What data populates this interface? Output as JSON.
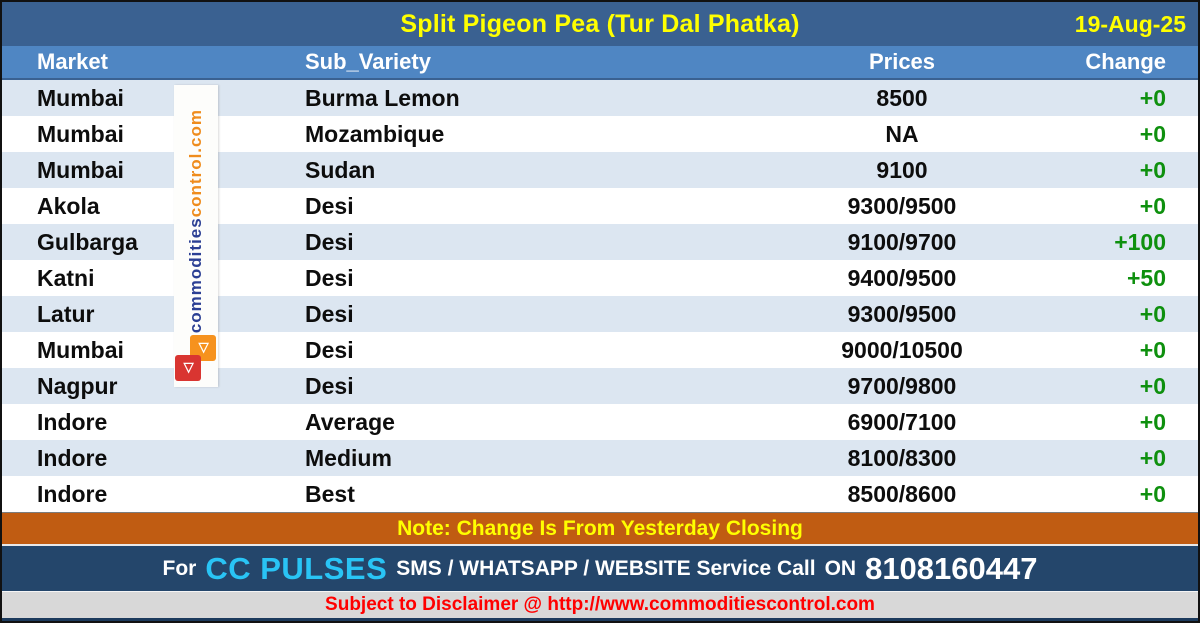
{
  "title": "Split Pigeon Pea (Tur Dal Phatka)",
  "date": "19-Aug-25",
  "columns": {
    "market": "Market",
    "variety": "Sub_Variety",
    "prices": "Prices",
    "change": "Change"
  },
  "rows": [
    {
      "market": "Mumbai",
      "variety": "Burma Lemon",
      "price": "8500",
      "change": "+0"
    },
    {
      "market": "Mumbai",
      "variety": "Mozambique",
      "price": "NA",
      "change": "+0"
    },
    {
      "market": "Mumbai",
      "variety": "Sudan",
      "price": "9100",
      "change": "+0"
    },
    {
      "market": "Akola",
      "variety": "Desi",
      "price": "9300/9500",
      "change": "+0"
    },
    {
      "market": "Gulbarga",
      "variety": "Desi",
      "price": "9100/9700",
      "change": "+100"
    },
    {
      "market": "Katni",
      "variety": "Desi",
      "price": "9400/9500",
      "change": "+50"
    },
    {
      "market": "Latur",
      "variety": "Desi",
      "price": "9300/9500",
      "change": "+0"
    },
    {
      "market": "Mumbai",
      "variety": "Desi",
      "price": "9000/10500",
      "change": "+0"
    },
    {
      "market": "Nagpur",
      "variety": "Desi",
      "price": "9700/9800",
      "change": "+0"
    },
    {
      "market": "Indore",
      "variety": "Average",
      "price": "6900/7100",
      "change": "+0"
    },
    {
      "market": "Indore",
      "variety": "Medium",
      "price": "8100/8300",
      "change": "+0"
    },
    {
      "market": "Indore",
      "variety": "Best",
      "price": "8500/8600",
      "change": "+0"
    }
  ],
  "note": "Note: Change Is From Yesterday Closing",
  "service": {
    "prefix": "For",
    "brand": "CC PULSES",
    "middle": "SMS / WHATSAPP / WEBSITE Service Call",
    "on": "ON",
    "phone": "8108160447"
  },
  "disclaimer": "Subject to Disclaimer @  http://www.commoditiescontrol.com",
  "watermark": {
    "blue_part": "commodities",
    "orange_part": "control.com",
    "logo_glyph": "◁"
  },
  "colors": {
    "title_bar": "#3a6191",
    "header_row": "#4f86c3",
    "alt_row": "#dce6f1",
    "change_green": "#0e900e",
    "note_bar": "#c05c12",
    "note_text": "#ffff00",
    "service_bar": "#24466b",
    "brand_cyan": "#29c4f5",
    "disclaimer_bar": "#d8d8d8",
    "disclaimer_text": "#ff0000",
    "watermark_blue": "#2b3f94",
    "watermark_orange": "#ef8c1d"
  }
}
